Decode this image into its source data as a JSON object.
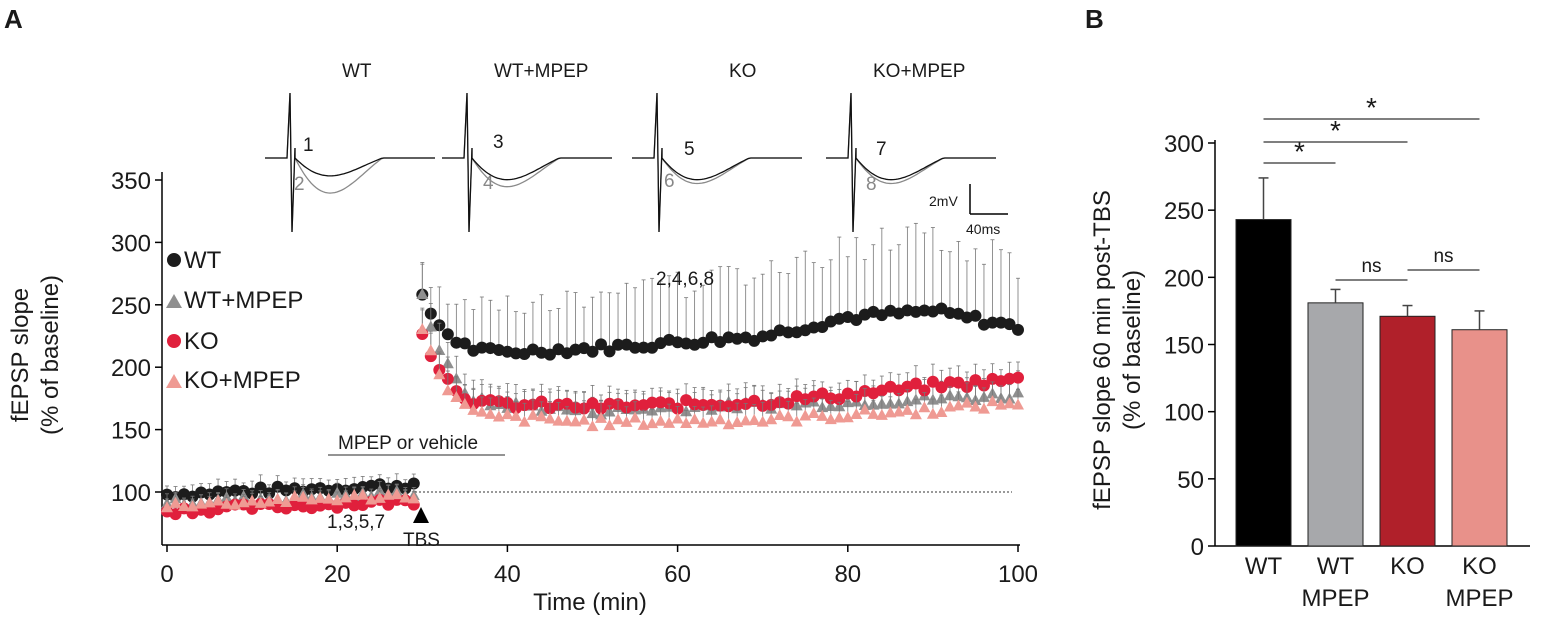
{
  "panel_a_label": "A",
  "panel_b_label": "B",
  "colors": {
    "wt": "#1c1c1c",
    "wt_mpep": "#8f8f8f",
    "ko": "#e0203c",
    "ko_mpep": "#ef9a93",
    "bar_wt": "#000000",
    "bar_wt_mpep": "#a7a8ab",
    "bar_ko": "#b0202a",
    "bar_ko_mpep": "#e8918a"
  },
  "chart_data": [
    {
      "type": "scatter",
      "panel": "A",
      "title": "",
      "xlabel": "Time (min)",
      "ylabel_line1": "fEPSP slope",
      "ylabel_line2": "(% of baseline)",
      "xlim": [
        0,
        100
      ],
      "ylim": [
        60,
        350
      ],
      "x_ticks": [
        0,
        20,
        40,
        60,
        80,
        100
      ],
      "x_tick_labels": [
        "0",
        "20",
        "40",
        "60",
        "80",
        "100"
      ],
      "y_ticks": [
        100,
        150,
        200,
        250,
        300,
        350
      ],
      "y_tick_labels": [
        "100",
        "150",
        "200",
        "250",
        "300",
        "350"
      ],
      "baseline_value": 100,
      "legend": [
        "WT",
        "WT+MPEP",
        "KO",
        "KO+MPEP"
      ],
      "series": [
        {
          "name": "WT",
          "marker": "circle",
          "x": [
            0,
            30,
            40,
            50,
            60,
            70,
            80,
            90,
            100
          ],
          "y": [
            98,
            255,
            212,
            215,
            220,
            225,
            240,
            245,
            232
          ],
          "err": [
            8,
            25,
            35,
            40,
            45,
            48,
            55,
            55,
            50
          ]
        },
        {
          "name": "WT+MPEP",
          "marker": "triangle",
          "x": [
            0,
            30,
            40,
            50,
            60,
            70,
            80,
            90,
            100
          ],
          "y": [
            92,
            258,
            170,
            165,
            168,
            170,
            172,
            175,
            178
          ],
          "err": [
            6,
            20,
            14,
            12,
            12,
            12,
            13,
            13,
            14
          ]
        },
        {
          "name": "KO",
          "marker": "circle",
          "x": [
            0,
            30,
            40,
            50,
            60,
            70,
            80,
            90,
            100
          ],
          "y": [
            85,
            228,
            170,
            168,
            170,
            172,
            178,
            185,
            190
          ],
          "err": [
            6,
            16,
            12,
            11,
            11,
            11,
            11,
            11,
            11
          ]
        },
        {
          "name": "KO+MPEP",
          "marker": "triangle",
          "x": [
            0,
            30,
            40,
            50,
            60,
            70,
            80,
            90,
            100
          ],
          "y": [
            90,
            230,
            160,
            156,
            157,
            158,
            162,
            166,
            172
          ],
          "err": [
            6,
            16,
            14,
            12,
            12,
            12,
            13,
            13,
            14
          ]
        }
      ],
      "annotations": {
        "drug_bar": "MPEP or vehicle",
        "drug_start": 20,
        "drug_end": 40,
        "tbs": "TBS",
        "tbs_time": 30,
        "pre_traces": "1,3,5,7",
        "post_traces": "2,4,6,8"
      },
      "traces": [
        {
          "title": "WT",
          "pre": "1",
          "post": "2"
        },
        {
          "title": "WT+MPEP",
          "pre": "3",
          "post": "4"
        },
        {
          "title": "KO",
          "pre": "5",
          "post": "6"
        },
        {
          "title": "KO+MPEP",
          "pre": "7",
          "post": "8"
        }
      ],
      "scale_bar": {
        "y_label": "2mV",
        "x_label": "40ms"
      }
    },
    {
      "type": "bar",
      "panel": "B",
      "categories": [
        "WT",
        "WT MPEP",
        "KO",
        "KO MPEP"
      ],
      "category_line1": [
        "WT",
        "WT",
        "KO",
        "KO"
      ],
      "category_line2": [
        "",
        "MPEP",
        "",
        "MPEP"
      ],
      "values": [
        243,
        181,
        171,
        161
      ],
      "errors": [
        31,
        10,
        8,
        14
      ],
      "ylabel_line1": "fEPSP slope  60 min post-TBS",
      "ylabel_line2": "(% of baseline)",
      "ylim": [
        0,
        300
      ],
      "y_ticks": [
        0,
        50,
        100,
        150,
        200,
        250,
        300
      ],
      "y_tick_labels": [
        "0",
        "50",
        "100",
        "150",
        "200",
        "250",
        "300"
      ],
      "significance": [
        {
          "from": 0,
          "to": 1,
          "label": "*"
        },
        {
          "from": 0,
          "to": 2,
          "label": "*"
        },
        {
          "from": 0,
          "to": 3,
          "label": "*"
        },
        {
          "from": 1,
          "to": 2,
          "label": "ns"
        },
        {
          "from": 2,
          "to": 3,
          "label": "ns"
        }
      ]
    }
  ]
}
